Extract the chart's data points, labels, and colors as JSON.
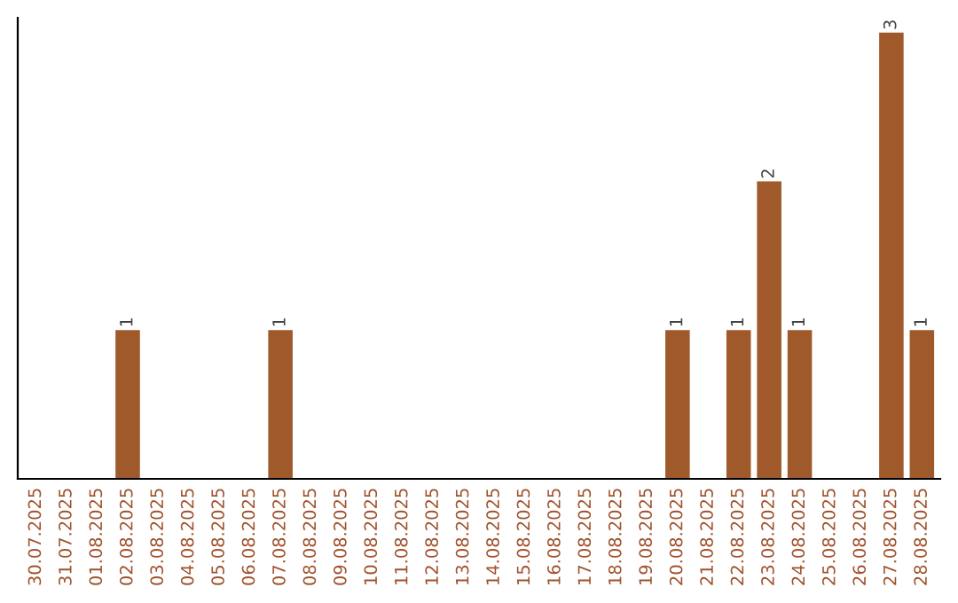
{
  "chart_data": {
    "type": "bar",
    "categories": [
      "30.07.2025",
      "31.07.2025",
      "01.08.2025",
      "02.08.2025",
      "03.08.2025",
      "04.08.2025",
      "05.08.2025",
      "06.08.2025",
      "07.08.2025",
      "08.08.2025",
      "09.08.2025",
      "10.08.2025",
      "11.08.2025",
      "12.08.2025",
      "13.08.2025",
      "14.08.2025",
      "15.08.2025",
      "16.08.2025",
      "17.08.2025",
      "18.08.2025",
      "19.08.2025",
      "20.08.2025",
      "21.08.2025",
      "22.08.2025",
      "23.08.2025",
      "24.08.2025",
      "25.08.2025",
      "26.08.2025",
      "27.08.2025",
      "28.08.2025"
    ],
    "values": [
      0,
      0,
      0,
      1,
      0,
      0,
      0,
      0,
      1,
      0,
      0,
      0,
      0,
      0,
      0,
      0,
      0,
      0,
      0,
      0,
      0,
      1,
      0,
      1,
      2,
      1,
      0,
      0,
      3,
      1
    ],
    "value_labels": [
      null,
      null,
      null,
      "1",
      null,
      null,
      null,
      null,
      "1",
      null,
      null,
      null,
      null,
      null,
      null,
      null,
      null,
      null,
      null,
      null,
      null,
      "1",
      null,
      "1",
      "2",
      "1",
      null,
      null,
      "3",
      "1"
    ],
    "color": "#a0592a",
    "ylim": [
      0,
      3.1
    ],
    "tick_labels": "x",
    "grid": false,
    "legend": false
  }
}
